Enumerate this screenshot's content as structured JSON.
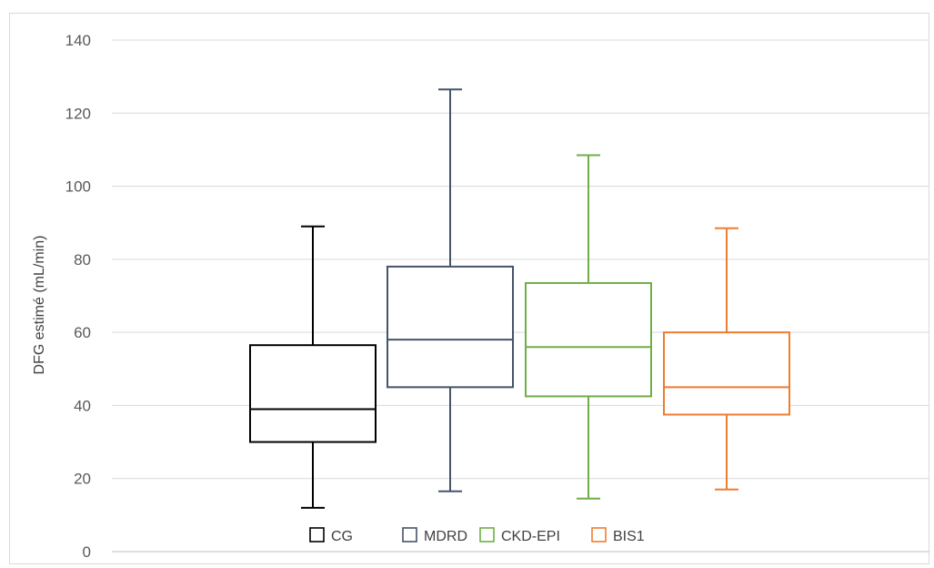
{
  "chart_data": {
    "type": "boxplot",
    "ylabel": "DFG estimé  (mL/min)",
    "ylim": [
      0,
      140
    ],
    "y_ticks": [
      "0",
      "20",
      "40",
      "60",
      "80",
      "100",
      "120",
      "140"
    ],
    "grid": true,
    "legend_position": "bottom",
    "series": [
      {
        "name": "CG",
        "color": "#000000",
        "min": 12,
        "q1": 30,
        "median": 39,
        "q3": 56.5,
        "max": 89
      },
      {
        "name": "MDRD",
        "color": "#44546a",
        "min": 16.5,
        "q1": 45,
        "median": 58,
        "q3": 78,
        "max": 126.5
      },
      {
        "name": "CKD-EPI",
        "color": "#70ad47",
        "min": 14.5,
        "q1": 42.5,
        "median": 56,
        "q3": 73.5,
        "max": 108.5
      },
      {
        "name": "BIS1",
        "color": "#ed7d31",
        "min": 17,
        "q1": 37.5,
        "median": 45,
        "q3": 60,
        "max": 88.5
      }
    ]
  }
}
